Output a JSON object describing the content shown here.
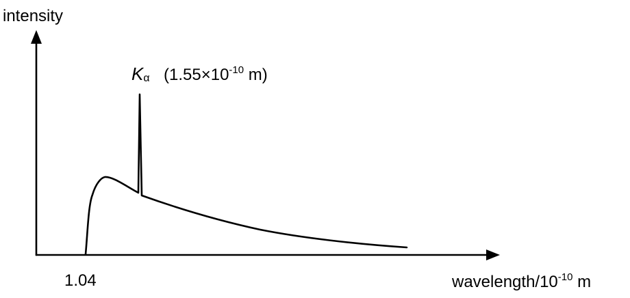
{
  "diagram": {
    "y_axis_label": "intensity",
    "x_axis_label": {
      "base": "wavelength/10",
      "exponent": "-10",
      "unit": " m"
    },
    "cutoff_label": "1.04",
    "peak_label": {
      "symbol": "K",
      "subscript": "α",
      "value_open": "(1.55×10",
      "value_exponent": "-10",
      "value_close": " m)"
    },
    "line_color": "#000000"
  }
}
